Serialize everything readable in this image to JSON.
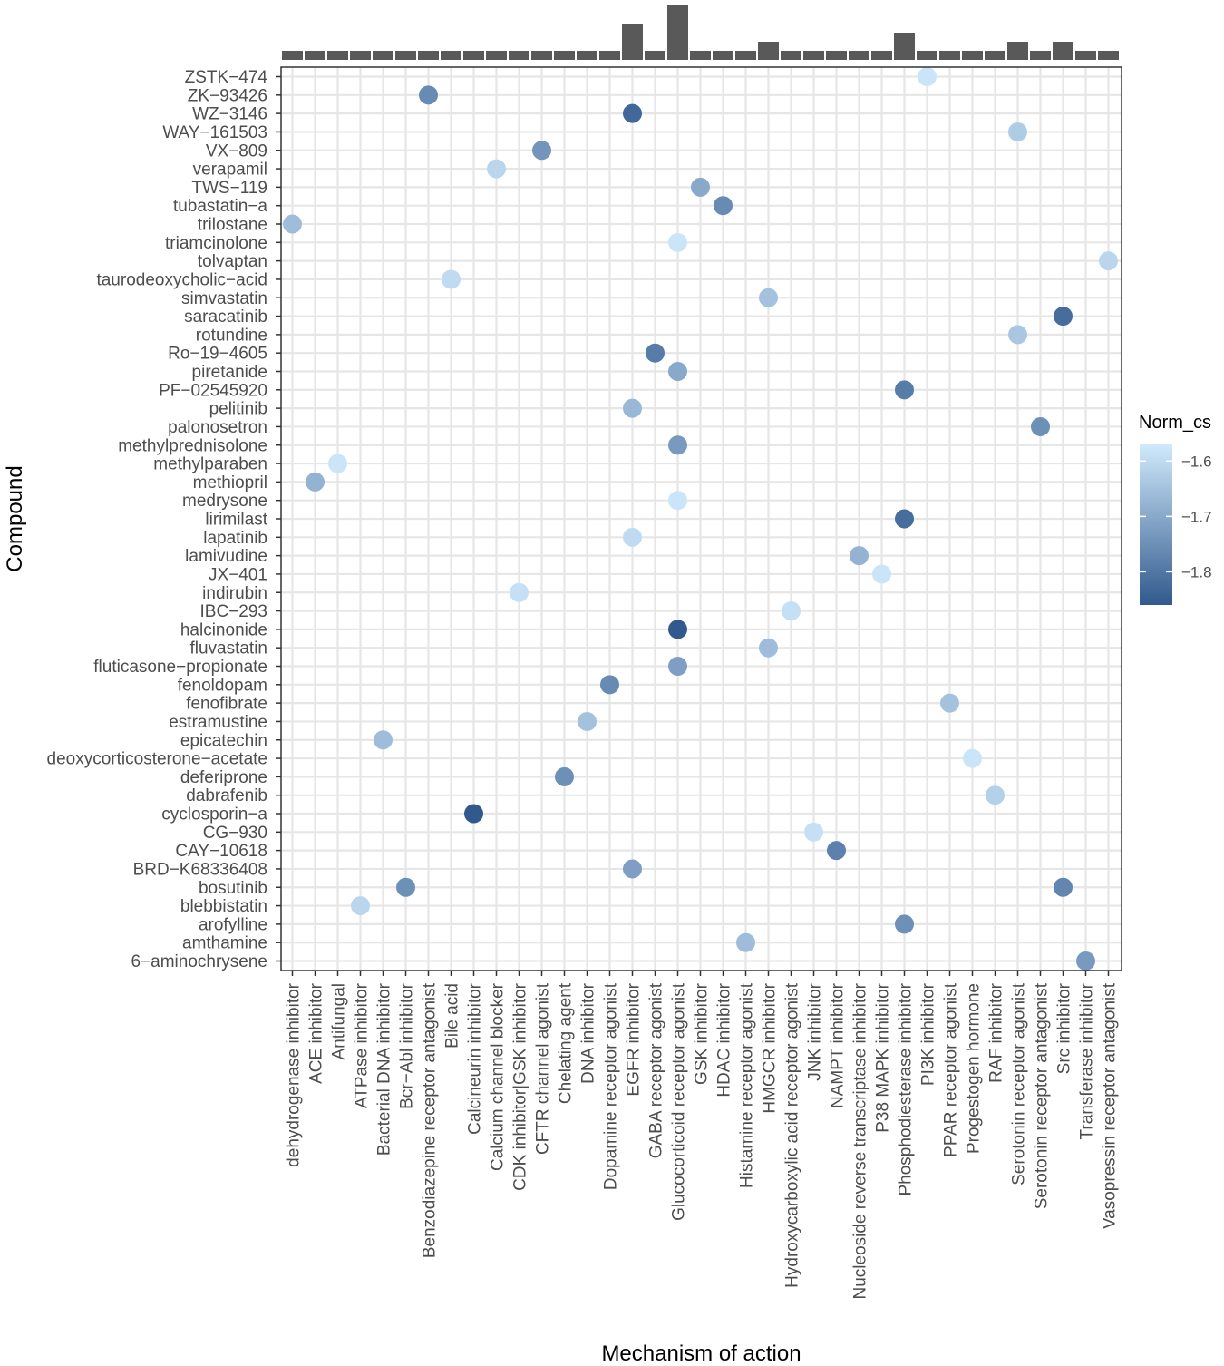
{
  "chart_data": {
    "type": "scatter",
    "xlabel": "Mechanism of action",
    "ylabel": "Compound",
    "grid": true,
    "legend": {
      "title": "Norm_cs",
      "position": "right",
      "range": [
        -1.86,
        -1.57
      ],
      "ticks": [
        -1.6,
        -1.7,
        -1.8
      ],
      "tick_labels": [
        "−1.6",
        "−1.7",
        "−1.8"
      ],
      "color_low": "#31598d",
      "color_high": "#d0eafc"
    },
    "mechanisms": [
      "dehydrogenase inhibitor",
      "ACE inhibitor",
      "Antifungal",
      "ATPase inhibitor",
      "Bacterial DNA inhibitor",
      "Bcr−Abl inhibitor",
      "Benzodiazepine receptor antagonist",
      "Bile acid",
      "Calcineurin inhibitor",
      "Calcium channel blocker",
      "CDK inhibitor|GSK inhibitor",
      "CFTR channel agonist",
      "Chelating agent",
      "DNA inhibitor",
      "Dopamine receptor agonist",
      "EGFR inhibitor",
      "GABA receptor agonist",
      "Glucocorticoid receptor agonist",
      "GSK inhibitor",
      "HDAC inhibitor",
      "Histamine receptor agonist",
      "HMGCR inhibitor",
      "Hydroxycarboxylic acid receptor agonist",
      "JNK inhibitor",
      "NAMPT inhibitor",
      "Nucleoside reverse transcriptase inhibitor",
      "P38 MAPK inhibitor",
      "Phosphodiesterase inhibitor",
      "PI3K inhibitor",
      "PPAR receptor agonist",
      "Progestogen hormone",
      "RAF inhibitor",
      "Serotonin receptor agonist",
      "Serotonin receptor antagonist",
      "Src inhibitor",
      "Transferase inhibitor",
      "Vasopressin receptor antagonist"
    ],
    "compounds": [
      "ZSTK−474",
      "ZK−93426",
      "WZ−3146",
      "WAY−161503",
      "VX−809",
      "verapamil",
      "TWS−119",
      "tubastatin−a",
      "trilostane",
      "triamcinolone",
      "tolvaptan",
      "taurodeoxycholic−acid",
      "simvastatin",
      "saracatinib",
      "rotundine",
      "Ro−19−4605",
      "piretanide",
      "PF−02545920",
      "pelitinib",
      "palonosetron",
      "methylprednisolone",
      "methylparaben",
      "methiopril",
      "medrysone",
      "lirimilast",
      "lapatinib",
      "lamivudine",
      "JX−401",
      "indirubin",
      "IBC−293",
      "halcinonide",
      "fluvastatin",
      "fluticasone−propionate",
      "fenoldopam",
      "fenofibrate",
      "estramustine",
      "epicatechin",
      "deoxycorticosterone−acetate",
      "deferiprone",
      "dabrafenib",
      "cyclosporin−a",
      "CG−930",
      "CAY−10618",
      "BRD−K68336408",
      "bosutinib",
      "blebbistatin",
      "arofylline",
      "amthamine",
      "6−aminochrysene"
    ],
    "counts": [
      1,
      1,
      1,
      1,
      1,
      1,
      1,
      1,
      1,
      1,
      1,
      1,
      1,
      1,
      1,
      4,
      1,
      6,
      1,
      1,
      1,
      2,
      1,
      1,
      1,
      1,
      1,
      3,
      1,
      1,
      1,
      1,
      2,
      1,
      2,
      1,
      1
    ],
    "points": [
      {
        "compound": "ZSTK−474",
        "mechanism": "PI3K inhibitor",
        "norm_cs": -1.58
      },
      {
        "compound": "ZK−93426",
        "mechanism": "Benzodiazepine receptor antagonist",
        "norm_cs": -1.76
      },
      {
        "compound": "WZ−3146",
        "mechanism": "EGFR inhibitor",
        "norm_cs": -1.83
      },
      {
        "compound": "WAY−161503",
        "mechanism": "Serotonin receptor agonist",
        "norm_cs": -1.63
      },
      {
        "compound": "VX−809",
        "mechanism": "CFTR channel agonist",
        "norm_cs": -1.74
      },
      {
        "compound": "verapamil",
        "mechanism": "Calcium channel blocker",
        "norm_cs": -1.61
      },
      {
        "compound": "TWS−119",
        "mechanism": "GSK inhibitor",
        "norm_cs": -1.7
      },
      {
        "compound": "tubastatin−a",
        "mechanism": "HDAC inhibitor",
        "norm_cs": -1.76
      },
      {
        "compound": "trilostane",
        "mechanism": "dehydrogenase inhibitor",
        "norm_cs": -1.66
      },
      {
        "compound": "triamcinolone",
        "mechanism": "Glucocorticoid receptor agonist",
        "norm_cs": -1.58
      },
      {
        "compound": "tolvaptan",
        "mechanism": "Vasopressin receptor antagonist",
        "norm_cs": -1.61
      },
      {
        "compound": "taurodeoxycholic−acid",
        "mechanism": "Bile acid",
        "norm_cs": -1.6
      },
      {
        "compound": "simvastatin",
        "mechanism": "HMGCR inhibitor",
        "norm_cs": -1.65
      },
      {
        "compound": "saracatinib",
        "mechanism": "Src inhibitor",
        "norm_cs": -1.82
      },
      {
        "compound": "rotundine",
        "mechanism": "Serotonin receptor agonist",
        "norm_cs": -1.64
      },
      {
        "compound": "Ro−19−4605",
        "mechanism": "GABA receptor agonist",
        "norm_cs": -1.79
      },
      {
        "compound": "piretanide",
        "mechanism": "Glucocorticoid receptor agonist",
        "norm_cs": -1.7
      },
      {
        "compound": "PF−02545920",
        "mechanism": "Phosphodiesterase inhibitor",
        "norm_cs": -1.79
      },
      {
        "compound": "pelitinib",
        "mechanism": "EGFR inhibitor",
        "norm_cs": -1.67
      },
      {
        "compound": "palonosetron",
        "mechanism": "Serotonin receptor antagonist",
        "norm_cs": -1.75
      },
      {
        "compound": "methylprednisolone",
        "mechanism": "Glucocorticoid receptor agonist",
        "norm_cs": -1.73
      },
      {
        "compound": "methylparaben",
        "mechanism": "Antifungal",
        "norm_cs": -1.58
      },
      {
        "compound": "methiopril",
        "mechanism": "ACE inhibitor",
        "norm_cs": -1.68
      },
      {
        "compound": "medrysone",
        "mechanism": "Glucocorticoid receptor agonist",
        "norm_cs": -1.58
      },
      {
        "compound": "lirimilast",
        "mechanism": "Phosphodiesterase inhibitor",
        "norm_cs": -1.82
      },
      {
        "compound": "lapatinib",
        "mechanism": "EGFR inhibitor",
        "norm_cs": -1.6
      },
      {
        "compound": "lamivudine",
        "mechanism": "Nucleoside reverse transcriptase inhibitor",
        "norm_cs": -1.68
      },
      {
        "compound": "JX−401",
        "mechanism": "P38 MAPK inhibitor",
        "norm_cs": -1.58
      },
      {
        "compound": "indirubin",
        "mechanism": "CDK inhibitor|GSK inhibitor",
        "norm_cs": -1.59
      },
      {
        "compound": "IBC−293",
        "mechanism": "Hydroxycarboxylic acid receptor agonist",
        "norm_cs": -1.59
      },
      {
        "compound": "halcinonide",
        "mechanism": "Glucocorticoid receptor agonist",
        "norm_cs": -1.86
      },
      {
        "compound": "fluvastatin",
        "mechanism": "HMGCR inhibitor",
        "norm_cs": -1.66
      },
      {
        "compound": "fluticasone−propionate",
        "mechanism": "Glucocorticoid receptor agonist",
        "norm_cs": -1.72
      },
      {
        "compound": "fenoldopam",
        "mechanism": "Dopamine receptor agonist",
        "norm_cs": -1.76
      },
      {
        "compound": "fenofibrate",
        "mechanism": "PPAR receptor agonist",
        "norm_cs": -1.65
      },
      {
        "compound": "estramustine",
        "mechanism": "DNA inhibitor",
        "norm_cs": -1.65
      },
      {
        "compound": "epicatechin",
        "mechanism": "Bacterial DNA inhibitor",
        "norm_cs": -1.66
      },
      {
        "compound": "deoxycorticosterone−acetate",
        "mechanism": "Progestogen hormone",
        "norm_cs": -1.58
      },
      {
        "compound": "deferiprone",
        "mechanism": "Chelating agent",
        "norm_cs": -1.75
      },
      {
        "compound": "dabrafenib",
        "mechanism": "RAF inhibitor",
        "norm_cs": -1.62
      },
      {
        "compound": "cyclosporin−a",
        "mechanism": "Calcineurin inhibitor",
        "norm_cs": -1.86
      },
      {
        "compound": "CG−930",
        "mechanism": "JNK inhibitor",
        "norm_cs": -1.59
      },
      {
        "compound": "CAY−10618",
        "mechanism": "NAMPT inhibitor",
        "norm_cs": -1.78
      },
      {
        "compound": "BRD−K68336408",
        "mechanism": "EGFR inhibitor",
        "norm_cs": -1.72
      },
      {
        "compound": "bosutinib",
        "mechanism": "Src inhibitor",
        "norm_cs": -1.77
      },
      {
        "compound": "bosutinib",
        "mechanism": "Bcr−Abl inhibitor",
        "norm_cs": -1.75
      },
      {
        "compound": "blebbistatin",
        "mechanism": "ATPase inhibitor",
        "norm_cs": -1.61
      },
      {
        "compound": "arofylline",
        "mechanism": "Phosphodiesterase inhibitor",
        "norm_cs": -1.75
      },
      {
        "compound": "amthamine",
        "mechanism": "Histamine receptor agonist",
        "norm_cs": -1.66
      },
      {
        "compound": "6−aminochrysene",
        "mechanism": "Transferase inhibitor",
        "norm_cs": -1.73
      }
    ]
  }
}
